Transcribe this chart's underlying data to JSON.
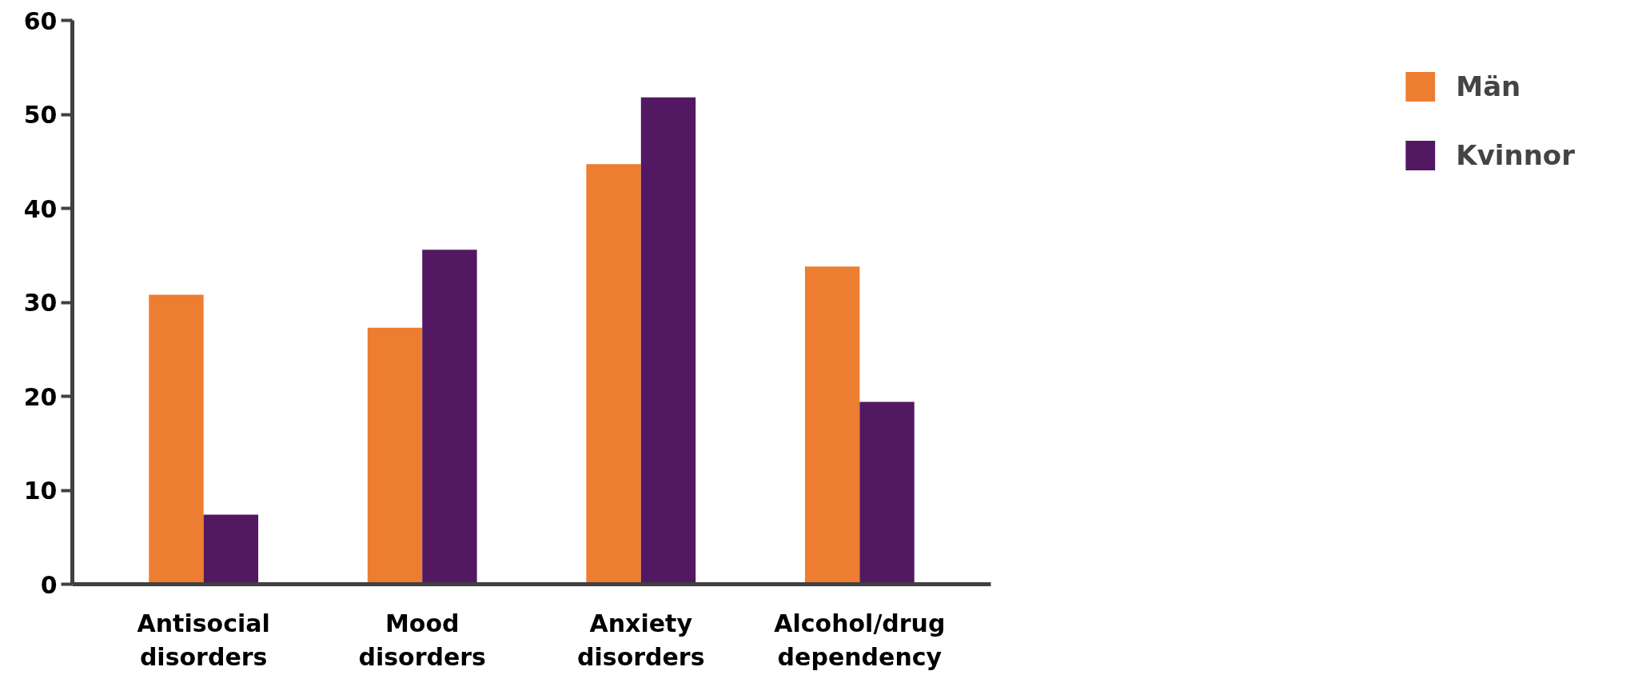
{
  "chart_data": {
    "type": "bar",
    "categories": [
      "Antisocial disorders",
      "Mood disorders",
      "Anxiety disorders",
      "Alcohol/drug dependency"
    ],
    "series": [
      {
        "name": "Män",
        "color": "#ed7d31",
        "values": [
          30.8,
          27.3,
          44.7,
          33.8
        ]
      },
      {
        "name": "Kvinnor",
        "color": "#521862",
        "values": [
          7.4,
          35.6,
          51.8,
          19.4
        ]
      }
    ],
    "ylim": [
      0,
      60
    ],
    "yticks": [
      0,
      10,
      20,
      30,
      40,
      50,
      60
    ],
    "grid": false,
    "legend": "right"
  }
}
